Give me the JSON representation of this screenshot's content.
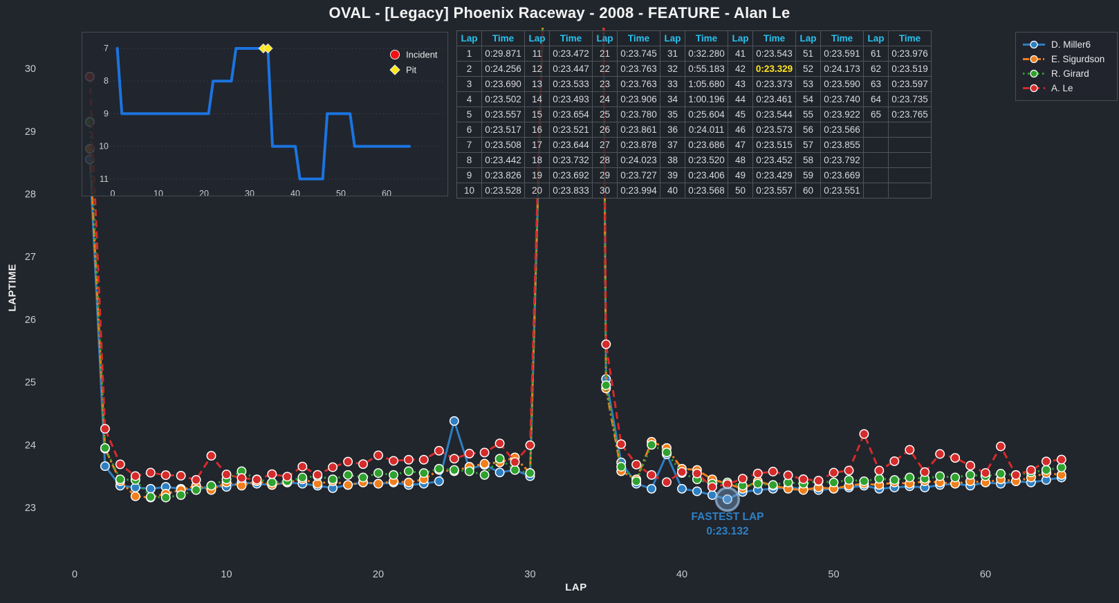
{
  "title": "OVAL - [Legacy] Phoenix Raceway - 2008 - FEATURE - Alan Le",
  "lap_table": {
    "header": {
      "lap": "Lap",
      "time": "Time"
    },
    "highlight": {
      "lap": "42",
      "time": "0:23.329"
    },
    "groups": [
      {
        "rows": [
          [
            "1",
            "0:29.871"
          ],
          [
            "2",
            "0:24.256"
          ],
          [
            "3",
            "0:23.690"
          ],
          [
            "4",
            "0:23.502"
          ],
          [
            "5",
            "0:23.557"
          ],
          [
            "6",
            "0:23.517"
          ],
          [
            "7",
            "0:23.508"
          ],
          [
            "8",
            "0:23.442"
          ],
          [
            "9",
            "0:23.826"
          ],
          [
            "10",
            "0:23.528"
          ]
        ]
      },
      {
        "rows": [
          [
            "11",
            "0:23.472"
          ],
          [
            "12",
            "0:23.447"
          ],
          [
            "13",
            "0:23.533"
          ],
          [
            "14",
            "0:23.493"
          ],
          [
            "15",
            "0:23.654"
          ],
          [
            "16",
            "0:23.521"
          ],
          [
            "17",
            "0:23.644"
          ],
          [
            "18",
            "0:23.732"
          ],
          [
            "19",
            "0:23.692"
          ],
          [
            "20",
            "0:23.833"
          ]
        ]
      },
      {
        "rows": [
          [
            "21",
            "0:23.745"
          ],
          [
            "22",
            "0:23.763"
          ],
          [
            "23",
            "0:23.763"
          ],
          [
            "24",
            "0:23.906"
          ],
          [
            "25",
            "0:23.780"
          ],
          [
            "26",
            "0:23.861"
          ],
          [
            "27",
            "0:23.878"
          ],
          [
            "28",
            "0:24.023"
          ],
          [
            "29",
            "0:23.727"
          ],
          [
            "30",
            "0:23.994"
          ]
        ]
      },
      {
        "rows": [
          [
            "31",
            "0:32.280"
          ],
          [
            "32",
            "0:55.183"
          ],
          [
            "33",
            "1:05.680"
          ],
          [
            "34",
            "1:00.196"
          ],
          [
            "35",
            "0:25.604"
          ],
          [
            "36",
            "0:24.011"
          ],
          [
            "37",
            "0:23.686"
          ],
          [
            "38",
            "0:23.520"
          ],
          [
            "39",
            "0:23.406"
          ],
          [
            "40",
            "0:23.568"
          ]
        ]
      },
      {
        "rows": [
          [
            "41",
            "0:23.543"
          ],
          [
            "42",
            "0:23.329"
          ],
          [
            "43",
            "0:23.373"
          ],
          [
            "44",
            "0:23.461"
          ],
          [
            "45",
            "0:23.544"
          ],
          [
            "46",
            "0:23.573"
          ],
          [
            "47",
            "0:23.515"
          ],
          [
            "48",
            "0:23.452"
          ],
          [
            "49",
            "0:23.429"
          ],
          [
            "50",
            "0:23.557"
          ]
        ]
      },
      {
        "rows": [
          [
            "51",
            "0:23.591"
          ],
          [
            "52",
            "0:24.173"
          ],
          [
            "53",
            "0:23.590"
          ],
          [
            "54",
            "0:23.740"
          ],
          [
            "55",
            "0:23.922"
          ],
          [
            "56",
            "0:23.566"
          ],
          [
            "57",
            "0:23.855"
          ],
          [
            "58",
            "0:23.792"
          ],
          [
            "59",
            "0:23.669"
          ],
          [
            "60",
            "0:23.551"
          ]
        ]
      },
      {
        "rows": [
          [
            "61",
            "0:23.976"
          ],
          [
            "62",
            "0:23.519"
          ],
          [
            "63",
            "0:23.597"
          ],
          [
            "64",
            "0:23.735"
          ],
          [
            "65",
            "0:23.765"
          ]
        ]
      }
    ]
  },
  "drivers_legend": [
    {
      "name": "D. Miller6",
      "color": "#2e7fc1",
      "dash": ""
    },
    {
      "name": "E. Sigurdson",
      "color": "#f07e1b",
      "dash": "9 3 2 3"
    },
    {
      "name": "R. Girard",
      "color": "#2fa12e",
      "dash": "2.5 4.5"
    },
    {
      "name": "A. Le",
      "color": "#d62b2b",
      "dash": "9 6"
    }
  ],
  "position_chart": {
    "line_color": "#1b74e0",
    "yticks": [
      7,
      8,
      9,
      10,
      11
    ],
    "xticks": [
      0,
      10,
      20,
      30,
      40,
      50,
      60
    ],
    "positions": [
      7,
      9,
      9,
      9,
      9,
      9,
      9,
      9,
      9,
      9,
      9,
      9,
      9,
      9,
      9,
      9,
      9,
      9,
      9,
      9,
      9,
      8,
      8,
      8,
      8,
      8,
      7,
      7,
      7,
      7,
      7,
      7,
      7,
      7,
      10,
      10,
      10,
      10,
      10,
      10,
      11,
      11,
      11,
      11,
      11,
      11,
      9,
      9,
      9,
      9,
      9,
      9,
      10,
      10,
      10,
      10,
      10,
      10,
      10,
      10,
      10,
      10,
      10,
      10,
      10
    ],
    "pit_laps": [
      33,
      34
    ],
    "legend": [
      {
        "label": "Incident",
        "color": "#ee1212",
        "marker": "circle"
      },
      {
        "label": "Pit",
        "color": "#ffe818",
        "marker": "diamond"
      }
    ]
  },
  "chart_data": {
    "type": "line",
    "xlabel": "LAP",
    "ylabel": "LAPTIME",
    "xticks": [
      0,
      10,
      20,
      30,
      40,
      50,
      60
    ],
    "yticks": [
      23,
      24,
      25,
      26,
      27,
      28,
      29,
      30
    ],
    "xlim": [
      0,
      66
    ],
    "ylim": [
      22.9,
      30.4
    ],
    "grid": false,
    "legend_position": "top-right",
    "fastest_lap": {
      "label": "FASTEST LAP",
      "time": "0:23.132",
      "lap": 43,
      "value": 23.132,
      "series": "D. Miller6"
    },
    "series": [
      {
        "name": "D. Miller6",
        "color": "#2e7fc1",
        "dash": "",
        "values": [
          28.55,
          23.66,
          23.35,
          23.32,
          23.3,
          23.33,
          23.3,
          23.28,
          23.35,
          23.33,
          23.4,
          23.38,
          23.36,
          23.4,
          23.38,
          23.35,
          23.31,
          23.36,
          23.4,
          23.38,
          23.4,
          23.36,
          23.38,
          23.42,
          24.38,
          23.62,
          23.68,
          23.56,
          23.6,
          23.5,
          32.1,
          55.0,
          65.3,
          60.0,
          25.05,
          23.72,
          23.38,
          23.3,
          23.85,
          23.3,
          23.26,
          23.2,
          23.132,
          23.25,
          23.28,
          23.3,
          23.32,
          23.3,
          23.28,
          23.3,
          23.32,
          23.35,
          23.3,
          23.32,
          23.34,
          23.32,
          23.36,
          23.38,
          23.35,
          23.4,
          23.38,
          23.42,
          23.4,
          23.44,
          23.48
        ]
      },
      {
        "name": "E. Sigurdson",
        "color": "#f07e1b",
        "dash": "12 4 3 4",
        "values": [
          28.72,
          23.94,
          23.42,
          23.18,
          23.16,
          23.22,
          23.28,
          23.35,
          23.28,
          23.4,
          23.35,
          23.42,
          23.36,
          23.4,
          23.45,
          23.38,
          23.42,
          23.36,
          23.4,
          23.38,
          23.42,
          23.4,
          23.45,
          23.6,
          23.58,
          23.65,
          23.7,
          23.72,
          23.8,
          23.55,
          32.2,
          55.1,
          65.5,
          60.1,
          24.9,
          23.58,
          23.45,
          24.05,
          23.95,
          23.62,
          23.6,
          23.45,
          23.38,
          23.3,
          23.42,
          23.35,
          23.3,
          23.28,
          23.32,
          23.3,
          23.35,
          23.38,
          23.36,
          23.4,
          23.38,
          23.42,
          23.4,
          23.38,
          23.42,
          23.4,
          23.45,
          23.42,
          23.48,
          23.55,
          23.52
        ]
      },
      {
        "name": "R. Girard",
        "color": "#2fa12e",
        "dash": "2.5 4.5",
        "values": [
          29.15,
          23.95,
          23.45,
          23.44,
          23.17,
          23.16,
          23.2,
          23.28,
          23.35,
          23.45,
          23.58,
          23.45,
          23.4,
          23.42,
          23.48,
          23.5,
          23.45,
          23.52,
          23.48,
          23.55,
          23.52,
          23.58,
          23.55,
          23.62,
          23.6,
          23.58,
          23.52,
          23.78,
          23.6,
          23.55,
          32.15,
          55.05,
          65.4,
          60.05,
          24.95,
          23.65,
          23.42,
          24.0,
          23.88,
          23.55,
          23.45,
          23.38,
          23.4,
          23.35,
          23.38,
          23.36,
          23.4,
          23.38,
          23.42,
          23.4,
          23.44,
          23.42,
          23.46,
          23.44,
          23.48,
          23.46,
          23.5,
          23.48,
          23.52,
          23.5,
          23.54,
          23.52,
          23.56,
          23.6,
          23.64
        ]
      },
      {
        "name": "A. Le",
        "color": "#d62b2b",
        "dash": "10 6",
        "values": [
          29.871,
          24.256,
          23.69,
          23.502,
          23.557,
          23.517,
          23.508,
          23.442,
          23.826,
          23.528,
          23.472,
          23.447,
          23.533,
          23.493,
          23.654,
          23.521,
          23.644,
          23.732,
          23.692,
          23.833,
          23.745,
          23.763,
          23.763,
          23.906,
          23.78,
          23.861,
          23.878,
          24.023,
          23.727,
          23.994,
          32.28,
          55.183,
          65.68,
          60.196,
          25.604,
          24.011,
          23.686,
          23.52,
          23.406,
          23.568,
          23.543,
          23.329,
          23.373,
          23.461,
          23.544,
          23.573,
          23.515,
          23.452,
          23.429,
          23.557,
          23.591,
          24.173,
          23.59,
          23.74,
          23.922,
          23.566,
          23.855,
          23.792,
          23.669,
          23.551,
          23.976,
          23.519,
          23.597,
          23.735,
          23.765
        ]
      }
    ]
  }
}
